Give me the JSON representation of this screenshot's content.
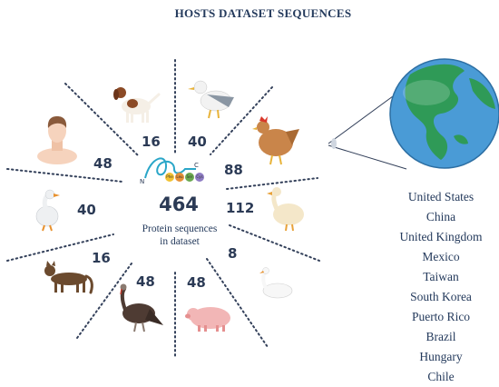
{
  "title": "HOSTS DATASET SEQUENCES",
  "center": {
    "total": "464",
    "label_line1": "Protein sequences",
    "label_line2": "in dataset",
    "protein_terminal_n": "N",
    "protein_terminal_c": "C",
    "protein_beads": [
      "Phe",
      "Leu",
      "Ser",
      "Cys"
    ]
  },
  "hosts": [
    {
      "icon": "dog-icon",
      "count": "16"
    },
    {
      "icon": "seagull-icon",
      "count": "40"
    },
    {
      "icon": "chicken-icon",
      "count": "88"
    },
    {
      "icon": "goose-icon",
      "count": "112"
    },
    {
      "icon": "swan-icon",
      "count": "8"
    },
    {
      "icon": "pig-icon",
      "count": "48"
    },
    {
      "icon": "turkey-icon",
      "count": "48"
    },
    {
      "icon": "cat-icon",
      "count": "16"
    },
    {
      "icon": "duck-icon",
      "count": "40"
    },
    {
      "icon": "human-icon",
      "count": "48"
    }
  ],
  "countries": [
    "United States",
    "China",
    "United Kingdom",
    "Mexico",
    "Taiwan",
    "South Korea",
    "Puerto Rico",
    "Brazil",
    "Hungary",
    "Chile"
  ],
  "colors": {
    "title": "#243a5c",
    "numbers": "#2b3a55",
    "dotted_lines": "#33405a",
    "globe_ocean": "#4a9bd6",
    "globe_land": "#2f9a57",
    "protein_strand": "#2aa6c8"
  }
}
